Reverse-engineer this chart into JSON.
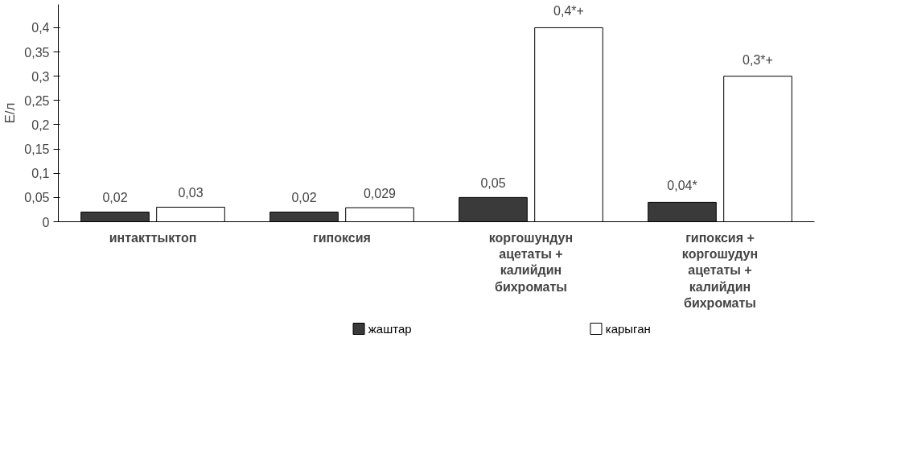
{
  "chart_data": {
    "type": "bar",
    "ylabel": "Е/л",
    "categories": [
      "интакттыктоп",
      "гипоксия",
      "коргошундун\nацетаты +\nкалийдин\nбихроматы",
      "гипоксия +\nкоргошудун\nацетаты +\nкалийдин\nбихроматы"
    ],
    "series": [
      {
        "name": "жаштар",
        "color": "#3a3a3a",
        "values": [
          0.02,
          0.02,
          0.05,
          0.04
        ],
        "value_labels": [
          "0,02",
          "0,02",
          "0,05",
          "0,04*"
        ]
      },
      {
        "name": "карыган",
        "color": "#ffffff",
        "values": [
          0.03,
          0.029,
          0.4,
          0.3
        ],
        "value_labels": [
          "0,03",
          "0,029",
          "0,4*+",
          "0,3*+"
        ]
      }
    ],
    "ylim": [
      0,
      0.4
    ],
    "yticks": [
      {
        "value": 0,
        "label": "0"
      },
      {
        "value": 0.05,
        "label": "0,05"
      },
      {
        "value": 0.1,
        "label": "0,1"
      },
      {
        "value": 0.15,
        "label": "0,15"
      },
      {
        "value": 0.2,
        "label": "0,2"
      },
      {
        "value": 0.25,
        "label": "0,25"
      },
      {
        "value": 0.3,
        "label": "0,3"
      },
      {
        "value": 0.35,
        "label": "0,35"
      },
      {
        "value": 0.4,
        "label": "0,4"
      }
    ],
    "legend": "bottom"
  }
}
